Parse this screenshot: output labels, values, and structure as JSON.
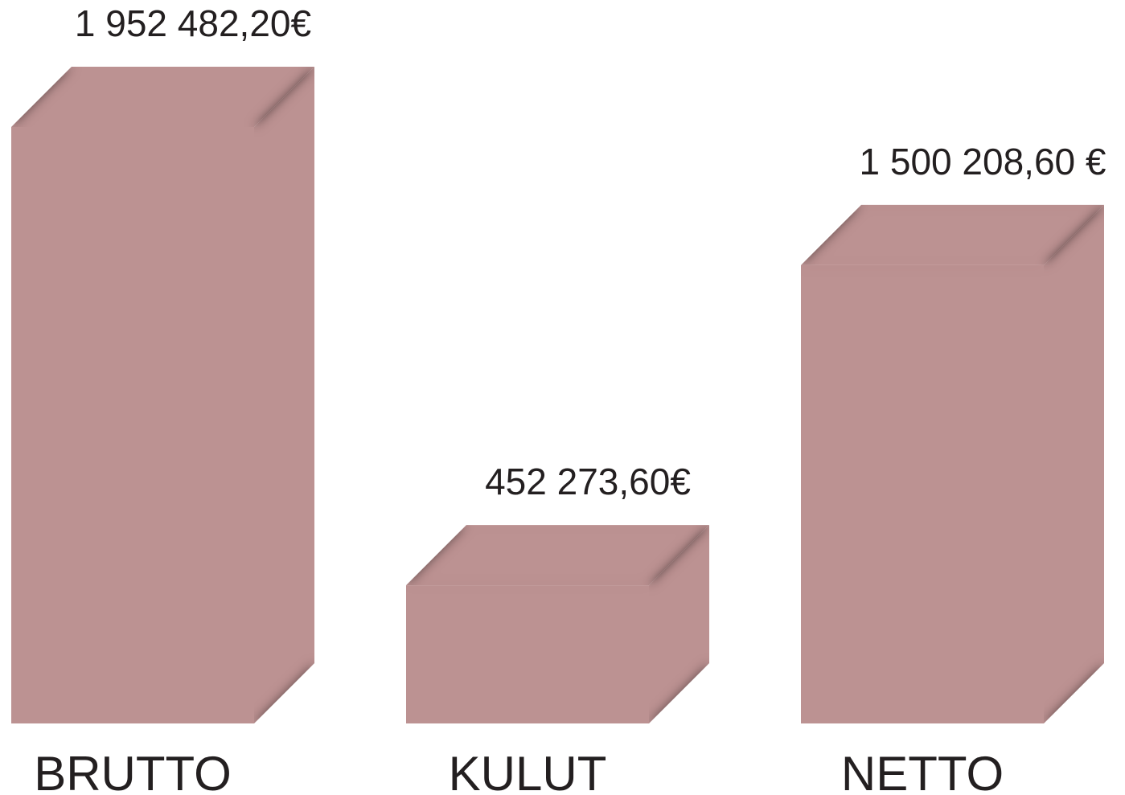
{
  "chart_data": {
    "type": "bar3d",
    "categories": [
      "BRUTTO",
      "KULUT",
      "NETTO"
    ],
    "values": [
      1952482.2,
      452273.6,
      1500208.6
    ],
    "value_labels": [
      "1 952 482,20€",
      "452 273,60€",
      "1 500 208,60 €"
    ],
    "color": "#bc9292"
  }
}
